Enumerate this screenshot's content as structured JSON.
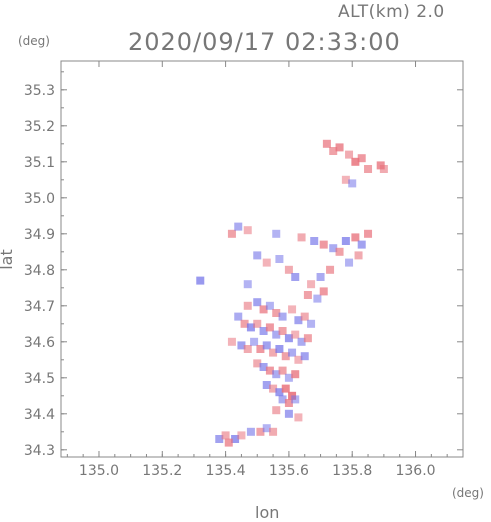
{
  "header": {
    "altitude": "ALT(km) 2.0",
    "timestamp": "2020/09/17 02:33:00"
  },
  "chart_data": {
    "type": "scatter",
    "title": "2020/09/17 02:33:00",
    "subtitle": "ALT(km) 2.0",
    "xlabel": "lon",
    "ylabel": "lat",
    "xunit": "(deg)",
    "yunit": "(deg)",
    "xlim": [
      134.88,
      136.15
    ],
    "ylim": [
      34.28,
      35.38
    ],
    "xticks": [
      "135.0",
      "135.2",
      "135.4",
      "135.6",
      "135.8",
      "136.0"
    ],
    "yticks": [
      "34.3",
      "34.4",
      "34.5",
      "34.6",
      "34.7",
      "34.8",
      "34.9",
      "35.0",
      "35.1",
      "35.2",
      "35.3"
    ],
    "grid": false,
    "colors": {
      "positive": "#e8707a",
      "negative": "#7070e8",
      "axis": "#888888"
    },
    "series": [
      {
        "values": [
          [
            135.72,
            35.15,
            0.6
          ],
          [
            135.74,
            35.13,
            0.5
          ],
          [
            135.76,
            35.14,
            0.7
          ],
          [
            135.79,
            35.12,
            0.4
          ],
          [
            135.81,
            35.1,
            0.8
          ],
          [
            135.83,
            35.11,
            0.6
          ],
          [
            135.85,
            35.08,
            0.5
          ],
          [
            135.89,
            35.09,
            0.7
          ],
          [
            135.9,
            35.08,
            0.4
          ],
          [
            135.78,
            35.05,
            0.3
          ],
          [
            135.8,
            35.04,
            -0.3
          ],
          [
            135.42,
            34.9,
            0.5
          ],
          [
            135.44,
            34.92,
            -0.4
          ],
          [
            135.47,
            34.91,
            0.3
          ],
          [
            135.56,
            34.9,
            -0.3
          ],
          [
            135.64,
            34.89,
            0.4
          ],
          [
            135.68,
            34.88,
            -0.5
          ],
          [
            135.71,
            34.87,
            0.6
          ],
          [
            135.74,
            34.86,
            -0.4
          ],
          [
            135.76,
            34.85,
            0.5
          ],
          [
            135.78,
            34.88,
            -0.6
          ],
          [
            135.81,
            34.89,
            0.7
          ],
          [
            135.83,
            34.87,
            -0.5
          ],
          [
            135.85,
            34.9,
            0.6
          ],
          [
            135.82,
            34.84,
            0.4
          ],
          [
            135.79,
            34.82,
            -0.3
          ],
          [
            135.73,
            34.8,
            0.5
          ],
          [
            135.7,
            34.78,
            -0.4
          ],
          [
            135.67,
            34.76,
            0.3
          ],
          [
            135.66,
            34.73,
            0.5
          ],
          [
            135.69,
            34.72,
            -0.3
          ],
          [
            135.71,
            34.74,
            0.6
          ],
          [
            135.5,
            34.84,
            -0.4
          ],
          [
            135.53,
            34.82,
            0.3
          ],
          [
            135.57,
            34.83,
            -0.3
          ],
          [
            135.6,
            34.8,
            0.4
          ],
          [
            135.62,
            34.78,
            -0.5
          ],
          [
            135.32,
            34.77,
            -0.6
          ],
          [
            135.47,
            34.76,
            -0.3
          ],
          [
            135.47,
            34.7,
            0.4
          ],
          [
            135.5,
            34.71,
            -0.5
          ],
          [
            135.52,
            34.69,
            0.6
          ],
          [
            135.54,
            34.7,
            -0.3
          ],
          [
            135.56,
            34.68,
            0.5
          ],
          [
            135.58,
            34.67,
            -0.4
          ],
          [
            135.61,
            34.69,
            0.3
          ],
          [
            135.63,
            34.66,
            -0.5
          ],
          [
            135.65,
            34.67,
            0.4
          ],
          [
            135.67,
            34.65,
            -0.3
          ],
          [
            135.44,
            34.67,
            -0.4
          ],
          [
            135.46,
            34.65,
            0.5
          ],
          [
            135.48,
            34.64,
            -0.6
          ],
          [
            135.5,
            34.65,
            0.4
          ],
          [
            135.52,
            34.63,
            -0.5
          ],
          [
            135.54,
            34.64,
            0.6
          ],
          [
            135.56,
            34.62,
            -0.4
          ],
          [
            135.58,
            34.63,
            0.5
          ],
          [
            135.6,
            34.61,
            -0.6
          ],
          [
            135.62,
            34.62,
            0.3
          ],
          [
            135.64,
            34.6,
            -0.4
          ],
          [
            135.66,
            34.61,
            0.5
          ],
          [
            135.42,
            34.6,
            0.3
          ],
          [
            135.45,
            34.59,
            -0.5
          ],
          [
            135.47,
            34.58,
            0.4
          ],
          [
            135.49,
            34.6,
            -0.3
          ],
          [
            135.51,
            34.58,
            0.6
          ],
          [
            135.53,
            34.59,
            -0.5
          ],
          [
            135.55,
            34.57,
            0.4
          ],
          [
            135.57,
            34.58,
            -0.6
          ],
          [
            135.59,
            34.56,
            0.5
          ],
          [
            135.61,
            34.57,
            -0.4
          ],
          [
            135.63,
            34.55,
            0.3
          ],
          [
            135.65,
            34.56,
            -0.5
          ],
          [
            135.5,
            34.54,
            0.4
          ],
          [
            135.52,
            34.53,
            -0.5
          ],
          [
            135.54,
            34.52,
            0.6
          ],
          [
            135.56,
            34.51,
            -0.4
          ],
          [
            135.58,
            34.52,
            0.5
          ],
          [
            135.6,
            34.5,
            -0.3
          ],
          [
            135.62,
            34.51,
            0.7
          ],
          [
            135.53,
            34.48,
            -0.5
          ],
          [
            135.55,
            34.47,
            0.4
          ],
          [
            135.57,
            34.46,
            -0.6
          ],
          [
            135.59,
            34.47,
            0.8
          ],
          [
            135.61,
            34.45,
            0.9
          ],
          [
            135.58,
            34.44,
            -0.4
          ],
          [
            135.6,
            34.43,
            0.6
          ],
          [
            135.62,
            34.44,
            -0.3
          ],
          [
            135.56,
            34.41,
            0.4
          ],
          [
            135.6,
            34.4,
            -0.5
          ],
          [
            135.63,
            34.39,
            0.3
          ],
          [
            135.38,
            34.33,
            -0.5
          ],
          [
            135.4,
            34.34,
            0.4
          ],
          [
            135.43,
            34.33,
            -0.6
          ],
          [
            135.45,
            34.34,
            0.3
          ],
          [
            135.48,
            34.35,
            -0.4
          ],
          [
            135.51,
            34.35,
            0.5
          ],
          [
            135.53,
            34.36,
            -0.3
          ],
          [
            135.55,
            34.35,
            0.4
          ],
          [
            135.41,
            34.32,
            0.6
          ]
        ]
      }
    ]
  }
}
